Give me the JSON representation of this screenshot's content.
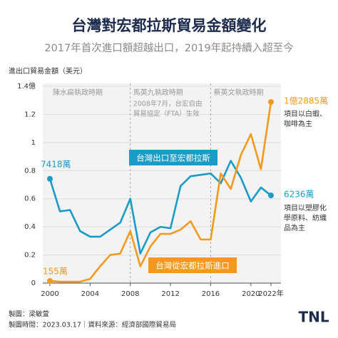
{
  "chart_data": {
    "type": "line",
    "title": "台灣對宏都拉斯貿易金額變化",
    "subtitle": "2017年首次進口額超越出口，2019年起持續入超至今",
    "y_label": "進出口貿易金額（美元）",
    "x": [
      2000,
      2001,
      2002,
      2003,
      2004,
      2005,
      2006,
      2007,
      2008,
      2009,
      2010,
      2011,
      2012,
      2013,
      2014,
      2015,
      2016,
      2017,
      2018,
      2019,
      2020,
      2021,
      2022
    ],
    "xlim": [
      2000,
      2022
    ],
    "xticks": [
      2000,
      2004,
      2008,
      2012,
      2016,
      2020,
      {
        "value": 2022,
        "label": "2022年"
      }
    ],
    "ylim": [
      0,
      1.4
    ],
    "yticks": [
      0,
      0.2,
      0.4,
      0.6,
      0.8,
      1,
      1.2,
      {
        "value": 1.4,
        "label": "1.4億"
      }
    ],
    "grid": true,
    "periods": [
      {
        "label": "陳水扁執政時期",
        "start": 2000,
        "end": 2008
      },
      {
        "label": "馬英九執政時期",
        "start": 2008,
        "end": 2016
      },
      {
        "label": "蔡英文執政時期",
        "start": 2016,
        "end": 2022
      }
    ],
    "fta_note": [
      "2008年7月，台宏自由",
      "貿易協定（FTA）生效"
    ],
    "series": [
      {
        "name": "台灣出口至宏都拉斯",
        "color": "#1b9bc7",
        "values": [
          0.7418,
          0.51,
          0.52,
          0.37,
          0.33,
          0.33,
          0.38,
          0.43,
          0.6,
          0.21,
          0.36,
          0.4,
          0.39,
          0.69,
          0.76,
          0.77,
          0.78,
          0.71,
          0.87,
          0.75,
          0.58,
          0.68,
          0.6236
        ],
        "start_label": "7418萬",
        "end_label": "6236萬",
        "end_note": [
          "項目以塑膠化",
          "學原料、紡織",
          "品為主"
        ]
      },
      {
        "name": "台灣從宏都拉斯進口",
        "color": "#f39a1e",
        "values": [
          0.0155,
          0.01,
          0.01,
          0.01,
          0.03,
          0.12,
          0.2,
          0.21,
          0.37,
          0.12,
          0.26,
          0.35,
          0.35,
          0.38,
          0.44,
          0.31,
          0.31,
          0.78,
          0.67,
          0.91,
          1.06,
          0.81,
          1.2885
        ],
        "start_label": "155萬",
        "end_label": "1億2885萬",
        "end_note": [
          "項目以白蝦、",
          "咖啡為主"
        ]
      }
    ]
  },
  "footer": [
    "製圖：梁敏萱",
    "製圖時間：2023.03.17｜資料來源：經濟部國際貿易局"
  ],
  "logo": "TNL"
}
